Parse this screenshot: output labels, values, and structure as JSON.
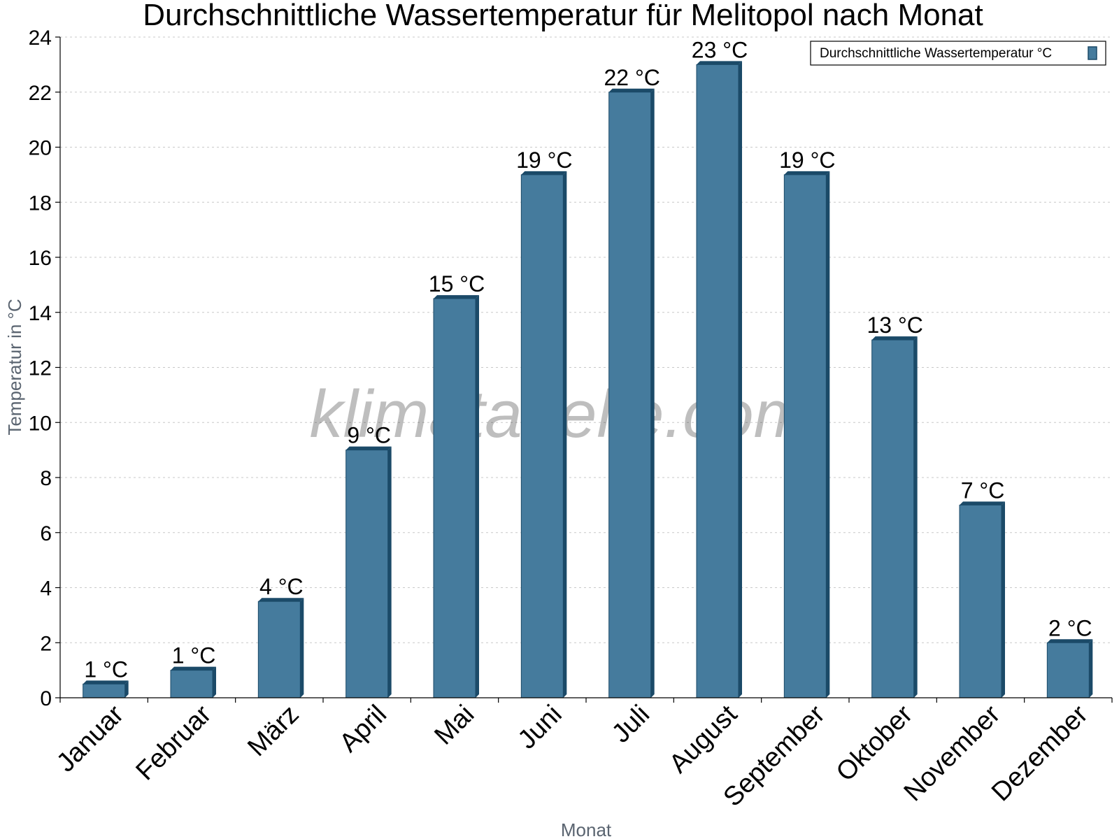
{
  "chart_data": {
    "type": "bar",
    "title": "Durchschnittliche Wassertemperatur für Melitopol nach Monat",
    "xlabel": "Monat",
    "ylabel": "Temperatur in °C",
    "ylim": [
      0,
      24
    ],
    "yticks": [
      0,
      2,
      4,
      6,
      8,
      10,
      12,
      14,
      16,
      18,
      20,
      22,
      24
    ],
    "grid": true,
    "legend_position": "top-right",
    "categories": [
      "Januar",
      "Februar",
      "März",
      "April",
      "Mai",
      "Juni",
      "Juli",
      "August",
      "September",
      "Oktober",
      "November",
      "Dezember"
    ],
    "series": [
      {
        "name": "Durchschnittliche Wassertemperatur °C",
        "color": "#457b9d",
        "values": [
          0.5,
          1,
          3.5,
          9,
          14.5,
          19,
          22,
          23,
          19,
          13,
          7,
          2
        ],
        "labels": [
          "1 °C",
          "1 °C",
          "4 °C",
          "9 °C",
          "15 °C",
          "19 °C",
          "22 °C",
          "23 °C",
          "19 °C",
          "13 °C",
          "7 °C",
          "2 °C"
        ]
      }
    ]
  },
  "watermark": "klimatabelle.com",
  "colors": {
    "bar": "#457b9d",
    "bar_edge": "#1b4a68"
  }
}
